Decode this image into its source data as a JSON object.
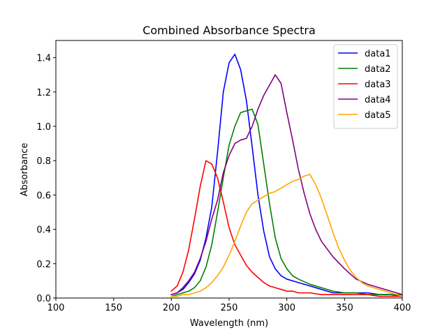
{
  "chart_data": {
    "type": "line",
    "title": "Combined Absorbance Spectra",
    "xlabel": "Wavelength (nm)",
    "ylabel": "Absorbance",
    "xlim": [
      100,
      400
    ],
    "ylim": [
      0,
      1.5
    ],
    "xticks": [
      100,
      150,
      200,
      250,
      300,
      350,
      400
    ],
    "yticks": [
      0.0,
      0.2,
      0.4,
      0.6,
      0.8,
      1.0,
      1.2,
      1.4
    ],
    "xtick_labels": [
      "100",
      "150",
      "200",
      "250",
      "300",
      "350",
      "400"
    ],
    "ytick_labels": [
      "0.0",
      "0.2",
      "0.4",
      "0.6",
      "0.8",
      "1.0",
      "1.2",
      "1.4"
    ],
    "grid": false,
    "legend_position": "top-right",
    "series": [
      {
        "name": "data1",
        "color": "#0000ff",
        "x": [
          200,
          205,
          210,
          215,
          220,
          225,
          230,
          235,
          240,
          245,
          250,
          255,
          260,
          265,
          270,
          275,
          280,
          285,
          290,
          295,
          300,
          310,
          320,
          330,
          340,
          350,
          360,
          370,
          380,
          390,
          400
        ],
        "y": [
          0.02,
          0.03,
          0.05,
          0.09,
          0.14,
          0.22,
          0.35,
          0.53,
          0.85,
          1.2,
          1.37,
          1.42,
          1.33,
          1.15,
          0.88,
          0.6,
          0.39,
          0.24,
          0.17,
          0.13,
          0.11,
          0.09,
          0.07,
          0.05,
          0.03,
          0.03,
          0.03,
          0.03,
          0.02,
          0.02,
          0.01
        ]
      },
      {
        "name": "data2",
        "color": "#008000",
        "x": [
          200,
          205,
          210,
          215,
          220,
          225,
          230,
          235,
          240,
          245,
          250,
          255,
          260,
          265,
          270,
          275,
          280,
          285,
          290,
          295,
          300,
          305,
          310,
          320,
          330,
          340,
          350,
          360,
          370,
          380,
          390,
          400
        ],
        "y": [
          0.01,
          0.02,
          0.03,
          0.04,
          0.06,
          0.1,
          0.18,
          0.31,
          0.5,
          0.7,
          0.89,
          1.0,
          1.08,
          1.09,
          1.1,
          1.01,
          0.78,
          0.55,
          0.35,
          0.23,
          0.17,
          0.13,
          0.11,
          0.08,
          0.06,
          0.04,
          0.03,
          0.03,
          0.02,
          0.02,
          0.02,
          0.02
        ]
      },
      {
        "name": "data3",
        "color": "#ff0000",
        "x": [
          200,
          205,
          210,
          215,
          220,
          225,
          230,
          235,
          240,
          245,
          250,
          255,
          260,
          265,
          270,
          275,
          280,
          285,
          290,
          295,
          300,
          305,
          310,
          320,
          330,
          340,
          350,
          360,
          370,
          380,
          390,
          400
        ],
        "y": [
          0.04,
          0.07,
          0.15,
          0.28,
          0.46,
          0.65,
          0.8,
          0.78,
          0.7,
          0.56,
          0.41,
          0.31,
          0.25,
          0.19,
          0.15,
          0.12,
          0.09,
          0.07,
          0.06,
          0.05,
          0.04,
          0.04,
          0.03,
          0.03,
          0.02,
          0.02,
          0.02,
          0.02,
          0.02,
          0.01,
          0.01,
          0.01
        ]
      },
      {
        "name": "data4",
        "color": "#800080",
        "x": [
          200,
          205,
          210,
          215,
          220,
          225,
          230,
          235,
          240,
          245,
          250,
          255,
          260,
          265,
          270,
          275,
          280,
          285,
          290,
          295,
          300,
          305,
          310,
          315,
          320,
          325,
          330,
          340,
          350,
          360,
          370,
          380,
          390,
          400
        ],
        "y": [
          0.02,
          0.03,
          0.06,
          0.1,
          0.15,
          0.23,
          0.33,
          0.46,
          0.57,
          0.73,
          0.83,
          0.9,
          0.92,
          0.93,
          1.0,
          1.1,
          1.18,
          1.24,
          1.3,
          1.25,
          1.08,
          0.92,
          0.75,
          0.61,
          0.49,
          0.4,
          0.33,
          0.24,
          0.17,
          0.11,
          0.08,
          0.06,
          0.04,
          0.02
        ]
      },
      {
        "name": "data5",
        "color": "#ffa500",
        "x": [
          200,
          205,
          210,
          215,
          220,
          225,
          230,
          235,
          240,
          245,
          250,
          255,
          260,
          265,
          270,
          275,
          280,
          285,
          290,
          295,
          300,
          305,
          310,
          315,
          320,
          325,
          330,
          335,
          340,
          345,
          350,
          355,
          360,
          365,
          370,
          375,
          380,
          390,
          400
        ],
        "y": [
          0.01,
          0.01,
          0.02,
          0.02,
          0.03,
          0.04,
          0.06,
          0.09,
          0.13,
          0.18,
          0.25,
          0.33,
          0.42,
          0.5,
          0.55,
          0.57,
          0.59,
          0.61,
          0.62,
          0.64,
          0.66,
          0.68,
          0.69,
          0.71,
          0.72,
          0.66,
          0.58,
          0.48,
          0.38,
          0.29,
          0.22,
          0.16,
          0.12,
          0.09,
          0.07,
          0.06,
          0.05,
          0.03,
          0.01
        ]
      }
    ]
  }
}
